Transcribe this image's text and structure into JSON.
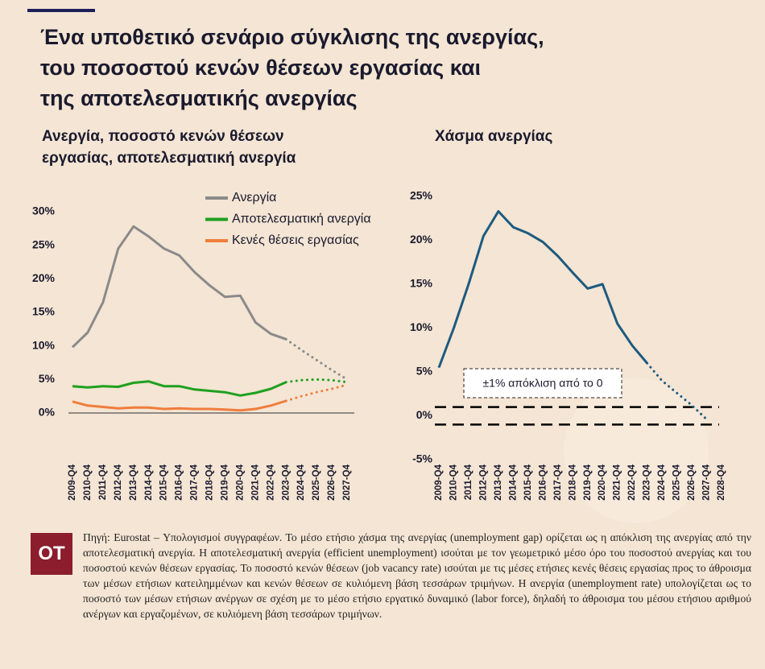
{
  "title": [
    "Ένα υποθετικό σενάριο σύγκλισης της ανεργίας,",
    "του ποσοστού κενών θέσεων εργασίας και",
    "της αποτελεσματικής ανεργίας"
  ],
  "chart_data": [
    {
      "type": "line",
      "title": [
        "Ανεργία, ποσοστό κενών θέσεων",
        "εργασίας, αποτελεσματική ανεργία"
      ],
      "categories": [
        "2009-Q4",
        "2010-Q4",
        "2011-Q4",
        "2012-Q4",
        "2013-Q4",
        "2014-Q4",
        "2015-Q4",
        "2016-Q4",
        "2017-Q4",
        "2018-Q4",
        "2019-Q4",
        "2020-Q4",
        "2021-Q4",
        "2022-Q4",
        "2023-Q4",
        "2024-Q4",
        "2025-Q4",
        "2026-Q4",
        "2027-Q4"
      ],
      "series": [
        {
          "name": "Ανεργία",
          "color": "#8a8a8a",
          "values": [
            9.8,
            12.0,
            16.5,
            24.5,
            27.8,
            26.3,
            24.5,
            23.5,
            21.0,
            19.0,
            17.3,
            17.5,
            13.5,
            11.8,
            11.0,
            null,
            null,
            null,
            null
          ],
          "projection": [
            null,
            null,
            null,
            null,
            null,
            null,
            null,
            null,
            null,
            null,
            null,
            null,
            null,
            null,
            11.0,
            9.4,
            7.9,
            6.4,
            5.0
          ]
        },
        {
          "name": "Αποτελεσματική ανεργία",
          "color": "#1fa01f",
          "values": [
            4.0,
            3.8,
            4.0,
            3.9,
            4.5,
            4.7,
            4.0,
            4.0,
            3.5,
            3.3,
            3.1,
            2.6,
            3.0,
            3.6,
            4.6,
            null,
            null,
            null,
            null
          ],
          "projection": [
            null,
            null,
            null,
            null,
            null,
            null,
            null,
            null,
            null,
            null,
            null,
            null,
            null,
            null,
            4.6,
            4.9,
            5.0,
            4.9,
            4.6
          ]
        },
        {
          "name": "Κενές θέσεις εργασίας",
          "color": "#f07d3c",
          "values": [
            1.7,
            1.1,
            0.9,
            0.7,
            0.8,
            0.8,
            0.6,
            0.7,
            0.6,
            0.6,
            0.5,
            0.4,
            0.6,
            1.1,
            1.8,
            null,
            null,
            null,
            null
          ],
          "projection": [
            null,
            null,
            null,
            null,
            null,
            null,
            null,
            null,
            null,
            null,
            null,
            null,
            null,
            null,
            1.8,
            2.5,
            3.1,
            3.6,
            4.2
          ]
        }
      ],
      "ylim": [
        0,
        30
      ],
      "yticks": [
        {
          "value": 0,
          "label": "0%"
        },
        {
          "value": 5,
          "label": "5%"
        },
        {
          "value": 10,
          "label": "10%"
        },
        {
          "value": 15,
          "label": "15%"
        },
        {
          "value": 20,
          "label": "20%"
        },
        {
          "value": 25,
          "label": "25%"
        },
        {
          "value": 30,
          "label": "30%"
        }
      ]
    },
    {
      "type": "line",
      "title": [
        "Χάσμα ανεργίας"
      ],
      "categories": [
        "2009-Q4",
        "2010-Q4",
        "2011-Q4",
        "2012-Q4",
        "2013-Q4",
        "2014-Q4",
        "2015-Q4",
        "2016-Q4",
        "2017-Q4",
        "2018-Q4",
        "2019-Q4",
        "2020-Q4",
        "2021-Q4",
        "2022-Q4",
        "2023-Q4",
        "2024-Q4",
        "2025-Q4",
        "2026-Q4",
        "2027-Q4",
        "2028-Q4"
      ],
      "series": [
        {
          "color": "#1e5a80",
          "values": [
            5.5,
            10.0,
            15.0,
            20.5,
            23.3,
            21.5,
            20.8,
            19.8,
            18.2,
            16.3,
            14.5,
            15.0,
            10.5,
            8.0,
            6.0,
            null,
            null,
            null,
            null,
            null
          ],
          "projection": [
            null,
            null,
            null,
            null,
            null,
            null,
            null,
            null,
            null,
            null,
            null,
            null,
            null,
            null,
            6.0,
            4.0,
            2.6,
            1.2,
            -0.4,
            null
          ]
        }
      ],
      "reference_lines": [
        1,
        -1
      ],
      "annotation": "±1% απόκλιση από το 0",
      "ylim": [
        -5,
        25
      ],
      "yticks": [
        {
          "value": -5,
          "label": "-5%"
        },
        {
          "value": 0,
          "label": "0%"
        },
        {
          "value": 5,
          "label": "5%"
        },
        {
          "value": 10,
          "label": "10%"
        },
        {
          "value": 15,
          "label": "15%"
        },
        {
          "value": 20,
          "label": "20%"
        },
        {
          "value": 25,
          "label": "25%"
        }
      ]
    }
  ],
  "footer": {
    "logo": "OT",
    "source": "Πηγή: Eurostat – Υπολογισμοί συγγραφέων. Το μέσο ετήσιο χάσμα της ανεργίας (unemployment gap) ορίζεται ως η απόκλιση της ανεργίας από την αποτελεσματική ανεργία. Η αποτελεσματική ανεργία (efficient unemployment) ισούται με τον γεωμετρικό μέσο όρο του ποσοστού ανεργίας και του ποσοστού κενών θέσεων εργασίας. Το ποσοστό κενών θέσεων (job vacancy rate) ισούται με τις μέσες ετήσιες κενές θέσεις εργασίας προς το άθροισμα των μέσων ετήσιων κατειλημμένων και κενών θέσεων σε κυλιόμενη βάση τεσσάρων τριμήνων. Η ανεργία (unemployment rate) υπολογίζεται ως το ποσοστό των μέσων ετήσιων ανέργων σε σχέση με το μέσο ετήσιο εργατικό δυναμικό (labor force), δηλαδή το άθροισμα του μέσου ετήσιου αριθμού ανέργων και εργαζομένων, σε κυλιόμενη βάση τεσσάρων τριμήνων."
  }
}
